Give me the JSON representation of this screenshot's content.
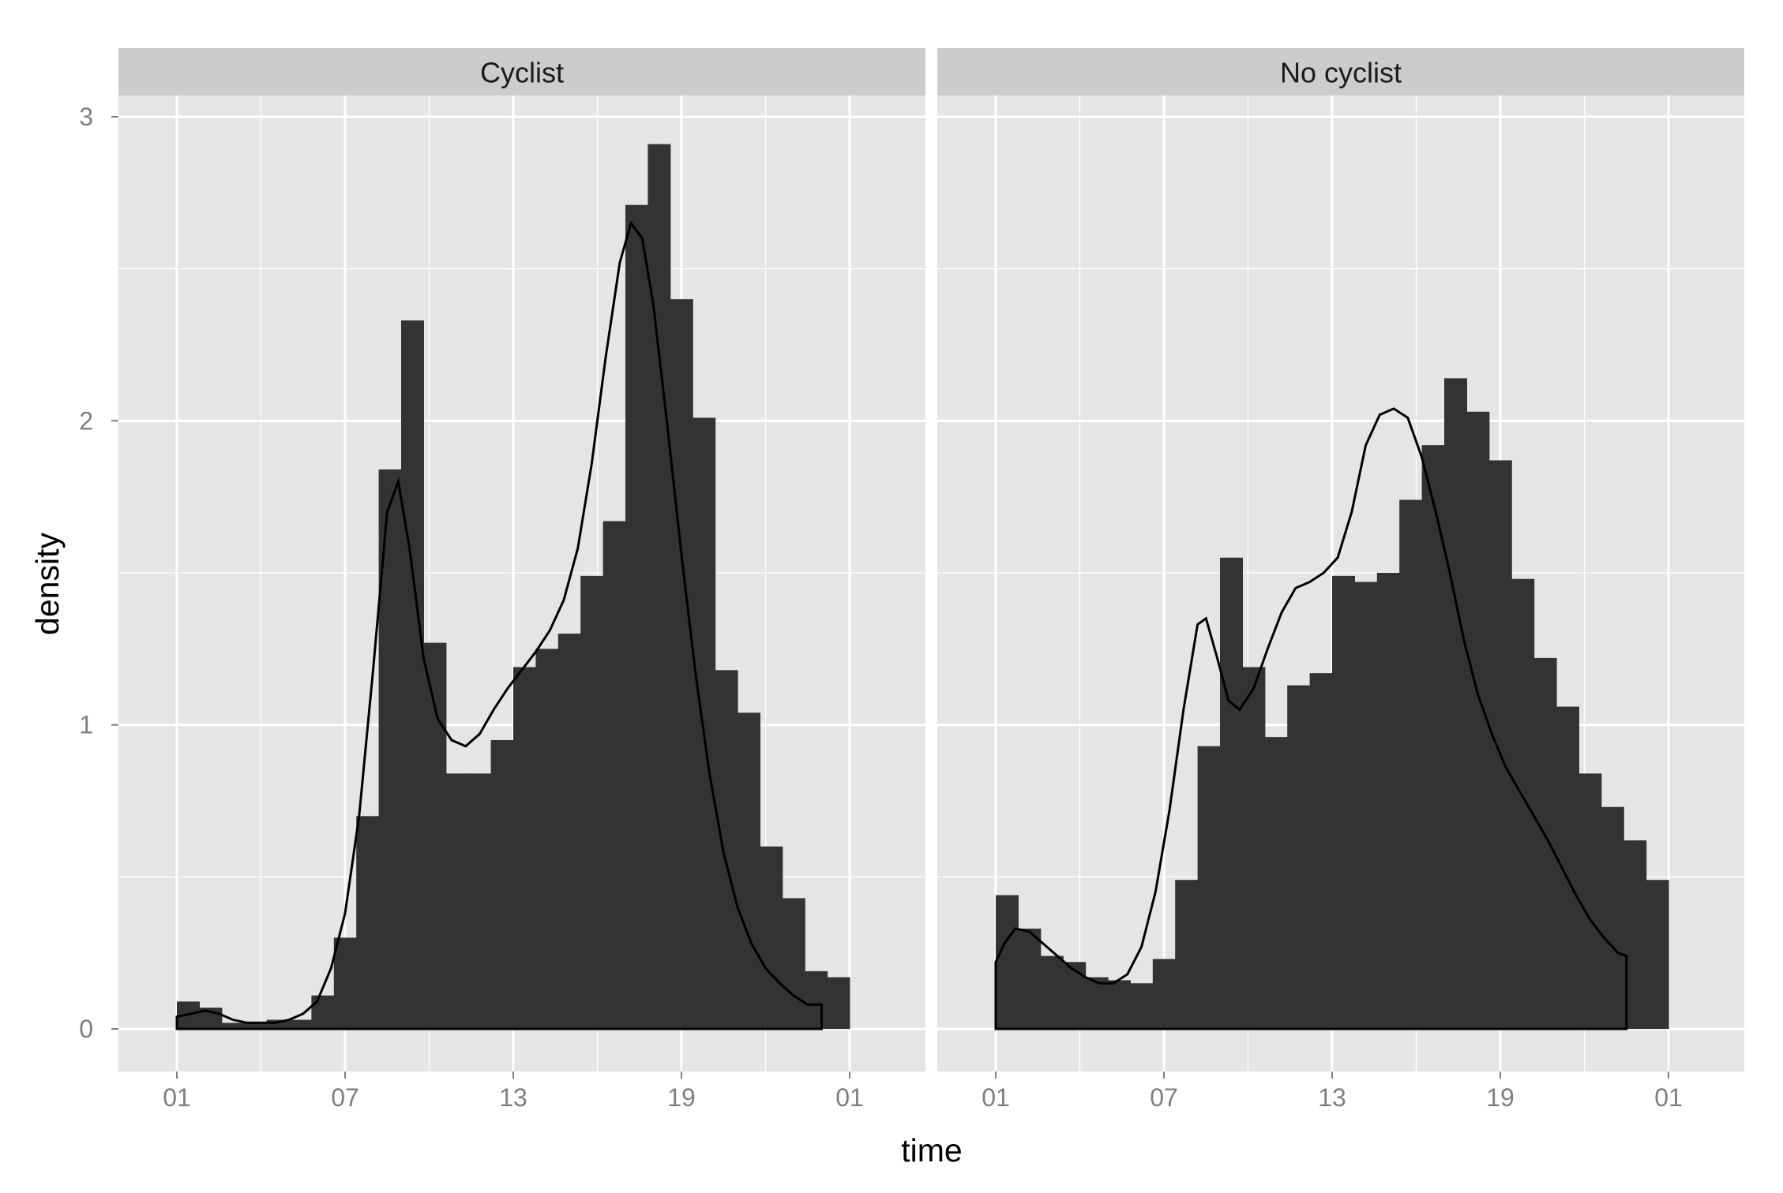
{
  "chart_data": {
    "type": "histogram",
    "xlabel": "time",
    "ylabel": "density",
    "x_ticks": [
      "01",
      "07",
      "13",
      "19",
      "01"
    ],
    "y_ticks": [
      "0",
      "1",
      "2",
      "3"
    ],
    "ylim": [
      -0.14,
      3.07
    ],
    "y_tick_values": [
      0,
      1,
      2,
      3
    ],
    "grid": true,
    "colors": {
      "panel_bg": "#e5e5e5",
      "strip_bg": "#cccccc",
      "bar": "#333333",
      "density_line": "#000000",
      "grid": "#ffffff"
    },
    "panels": [
      {
        "facet": "Cyclist",
        "bin_hours": 0.8,
        "histogram": [
          0.09,
          0.07,
          0.02,
          0.02,
          0.03,
          0.03,
          0.11,
          0.3,
          0.7,
          1.84,
          2.33,
          1.27,
          0.84,
          0.84,
          0.95,
          1.19,
          1.25,
          1.3,
          1.49,
          1.67,
          2.71,
          2.91,
          2.4,
          2.01,
          1.18,
          1.04,
          0.6,
          0.43,
          0.19,
          0.17
        ],
        "density_curve": [
          [
            0,
            0.04
          ],
          [
            0.5,
            0.05
          ],
          [
            1,
            0.06
          ],
          [
            1.5,
            0.05
          ],
          [
            2,
            0.03
          ],
          [
            2.5,
            0.02
          ],
          [
            3,
            0.02
          ],
          [
            3.5,
            0.02
          ],
          [
            4,
            0.03
          ],
          [
            4.5,
            0.05
          ],
          [
            5,
            0.09
          ],
          [
            5.5,
            0.2
          ],
          [
            6,
            0.38
          ],
          [
            6.5,
            0.7
          ],
          [
            7,
            1.18
          ],
          [
            7.5,
            1.7
          ],
          [
            7.9,
            1.8
          ],
          [
            8.3,
            1.58
          ],
          [
            8.8,
            1.22
          ],
          [
            9.3,
            1.02
          ],
          [
            9.8,
            0.95
          ],
          [
            10.3,
            0.93
          ],
          [
            10.8,
            0.97
          ],
          [
            11.3,
            1.05
          ],
          [
            11.8,
            1.12
          ],
          [
            12.3,
            1.18
          ],
          [
            12.8,
            1.24
          ],
          [
            13.3,
            1.31
          ],
          [
            13.8,
            1.41
          ],
          [
            14.3,
            1.58
          ],
          [
            14.8,
            1.86
          ],
          [
            15.3,
            2.21
          ],
          [
            15.8,
            2.52
          ],
          [
            16.2,
            2.65
          ],
          [
            16.6,
            2.6
          ],
          [
            17,
            2.38
          ],
          [
            17.5,
            1.98
          ],
          [
            18,
            1.56
          ],
          [
            18.5,
            1.17
          ],
          [
            19,
            0.84
          ],
          [
            19.5,
            0.58
          ],
          [
            20,
            0.4
          ],
          [
            20.5,
            0.28
          ],
          [
            21,
            0.2
          ],
          [
            21.5,
            0.15
          ],
          [
            22,
            0.11
          ],
          [
            22.5,
            0.08
          ],
          [
            23,
            0.08
          ]
        ]
      },
      {
        "facet": "No cyclist",
        "bin_hours": 0.8,
        "histogram": [
          0.44,
          0.33,
          0.24,
          0.22,
          0.17,
          0.16,
          0.15,
          0.23,
          0.49,
          0.93,
          1.55,
          1.19,
          0.96,
          1.13,
          1.17,
          1.49,
          1.47,
          1.5,
          1.74,
          1.92,
          2.14,
          2.03,
          1.87,
          1.48,
          1.22,
          1.06,
          0.84,
          0.73,
          0.62,
          0.49
        ],
        "density_curve": [
          [
            0,
            0.22
          ],
          [
            0.3,
            0.28
          ],
          [
            0.7,
            0.33
          ],
          [
            1.2,
            0.32
          ],
          [
            1.7,
            0.28
          ],
          [
            2.2,
            0.24
          ],
          [
            2.7,
            0.2
          ],
          [
            3.2,
            0.17
          ],
          [
            3.7,
            0.15
          ],
          [
            4.2,
            0.15
          ],
          [
            4.7,
            0.18
          ],
          [
            5.2,
            0.27
          ],
          [
            5.7,
            0.45
          ],
          [
            6.2,
            0.72
          ],
          [
            6.7,
            1.05
          ],
          [
            7.2,
            1.33
          ],
          [
            7.5,
            1.35
          ],
          [
            7.9,
            1.22
          ],
          [
            8.3,
            1.08
          ],
          [
            8.7,
            1.05
          ],
          [
            9.2,
            1.12
          ],
          [
            9.7,
            1.25
          ],
          [
            10.2,
            1.37
          ],
          [
            10.7,
            1.45
          ],
          [
            11.2,
            1.47
          ],
          [
            11.7,
            1.5
          ],
          [
            12.2,
            1.55
          ],
          [
            12.7,
            1.7
          ],
          [
            13.2,
            1.92
          ],
          [
            13.7,
            2.02
          ],
          [
            14.2,
            2.04
          ],
          [
            14.7,
            2.01
          ],
          [
            15.2,
            1.88
          ],
          [
            15.7,
            1.7
          ],
          [
            16.2,
            1.5
          ],
          [
            16.7,
            1.28
          ],
          [
            17.2,
            1.1
          ],
          [
            17.7,
            0.97
          ],
          [
            18.2,
            0.86
          ],
          [
            18.7,
            0.78
          ],
          [
            19.2,
            0.7
          ],
          [
            19.7,
            0.62
          ],
          [
            20.2,
            0.53
          ],
          [
            20.7,
            0.44
          ],
          [
            21.2,
            0.36
          ],
          [
            21.7,
            0.3
          ],
          [
            22.2,
            0.25
          ],
          [
            22.5,
            0.24
          ]
        ]
      }
    ]
  }
}
